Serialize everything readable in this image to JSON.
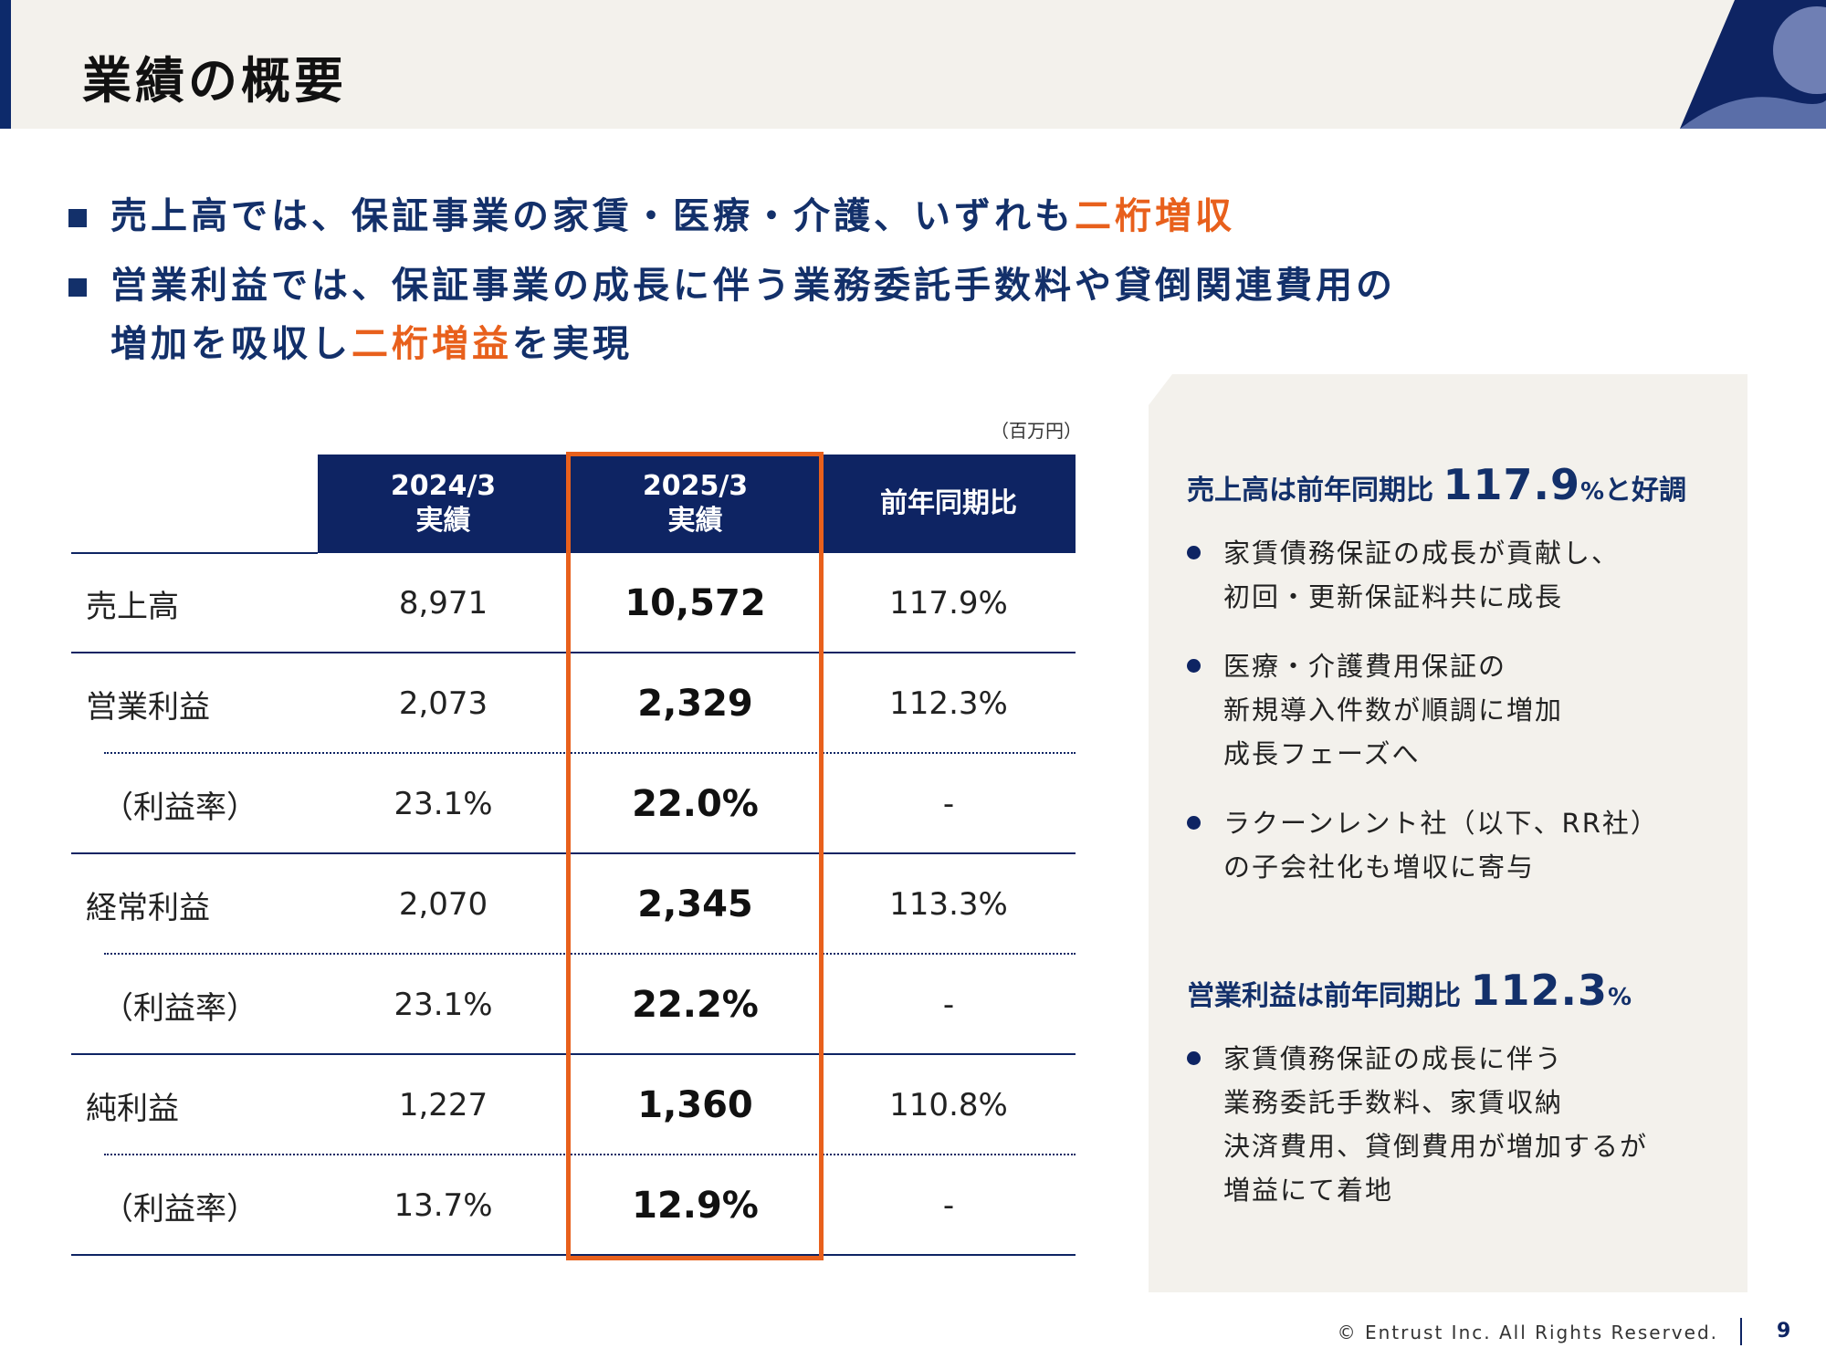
{
  "header": {
    "title": "業績の概要"
  },
  "bullets": [
    {
      "text": "売上高では、保証事業の家賃・医療・介護、いずれも",
      "accent": "二桁増収",
      "after": ""
    },
    {
      "text": "営業利益では、保証事業の成長に伴う業務委託手数料や貸倒関連費用の",
      "accent": "",
      "after": ""
    },
    {
      "text": "増加を吸収し",
      "accent": "二桁増益",
      "after": "を実現"
    }
  ],
  "table": {
    "unit": "（百万円）",
    "headers": [
      {
        "line1": "2024/3",
        "line2": "実績"
      },
      {
        "line1": "2025/3",
        "line2": "実績"
      },
      {
        "line1": "前年同期比",
        "line2": ""
      }
    ],
    "rows": [
      {
        "label": "売上高",
        "prev": "8,971",
        "cur": "10,572",
        "yoy": "117.9%"
      },
      {
        "label": "営業利益",
        "prev": "2,073",
        "cur": "2,329",
        "yoy": "112.3%"
      },
      {
        "label": "（利益率）",
        "prev": "23.1%",
        "cur": "22.0%",
        "yoy": "-"
      },
      {
        "label": "経常利益",
        "prev": "2,070",
        "cur": "2,345",
        "yoy": "113.3%"
      },
      {
        "label": "（利益率）",
        "prev": "23.1%",
        "cur": "22.2%",
        "yoy": "-"
      },
      {
        "label": "純利益",
        "prev": "1,227",
        "cur": "1,360",
        "yoy": "110.8%"
      },
      {
        "label": "（利益率）",
        "prev": "13.7%",
        "cur": "12.9%",
        "yoy": "-"
      }
    ]
  },
  "panel": {
    "sales_head": {
      "prefix": "売上高は前年同期比 ",
      "value": "117.9",
      "pct": "%",
      "suffix": "と好調"
    },
    "sales_bullets": [
      "家賃債務保証の成長が貢献し、\n初回・更新保証料共に成長",
      "医療・介護費用保証の\n新規導入件数が順調に増加\n成長フェーズへ",
      "ラクーンレント社（以下、RR社）\nの子会社化も増収に寄与"
    ],
    "profit_head": {
      "prefix": "営業利益は前年同期比 ",
      "value": "112.3",
      "pct": "%"
    },
    "profit_bullets": [
      "家賃債務保証の成長に伴う\n業務委託手数料、家賃収納\n決済費用、貸倒費用が増加するが\n増益にて着地"
    ]
  },
  "footer": {
    "copyright": "© Entrust Inc. All Rights Reserved.",
    "page": "9"
  },
  "colors": {
    "navy": "#0e2463",
    "accent": "#e8601c",
    "panel_bg": "#f3f1ec"
  }
}
